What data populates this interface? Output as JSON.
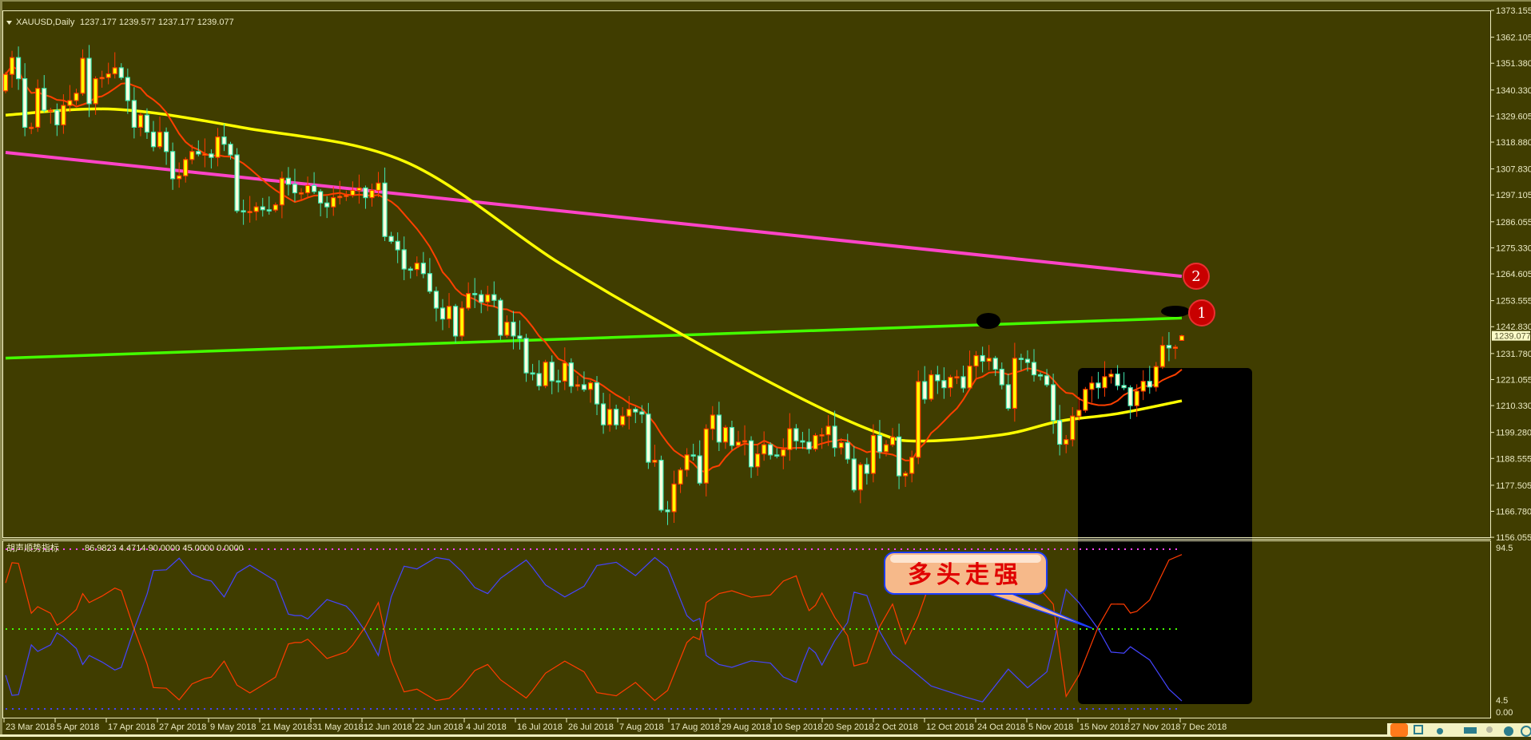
{
  "window": {
    "symbol_title": "XAUUSD,Daily",
    "ohlc": "1237.177 1239.577 1237.177 1239.077"
  },
  "colors": {
    "background": "#403d00",
    "frame": "#f0efc0",
    "bull_fill": "#ffff00",
    "bull_border": "#ff3c00",
    "bear_fill": "#fffee0",
    "bear_border": "#40e8b0",
    "ma_fast": "#ff4000",
    "ma_mid": "#ffff00",
    "ma_long": "#ff44c8",
    "trend_line": "#44ff00",
    "indicator_red": "#ff3c00",
    "indicator_blue": "#4444ff",
    "level_top": "#ff40ff",
    "level_mid": "#44ff00",
    "level_bottom": "#4444ff",
    "annotation_box": "#000000",
    "badge": "#c80000",
    "callout_fill": "#f6b98a",
    "callout_border": "#1a3cff"
  },
  "price_axis": {
    "ticks": [
      "1373.155",
      "1362.105",
      "1351.380",
      "1340.330",
      "1329.605",
      "1318.880",
      "1307.830",
      "1297.105",
      "1286.055",
      "1275.330",
      "1264.605",
      "1253.555",
      "1242.830",
      "1231.780",
      "1221.055",
      "1210.330",
      "1199.280",
      "1188.555",
      "1177.505",
      "1166.780",
      "1156.055"
    ],
    "current_price": "1239.077"
  },
  "time_axis": {
    "labels": [
      "23 Mar 2018",
      "5 Apr 2018",
      "17 Apr 2018",
      "27 Apr 2018",
      "9 May 2018",
      "21 May 2018",
      "31 May 2018",
      "12 Jun 2018",
      "22 Jun 2018",
      "4 Jul 2018",
      "16 Jul 2018",
      "26 Jul 2018",
      "7 Aug 2018",
      "17 Aug 2018",
      "29 Aug 2018",
      "10 Sep 2018",
      "20 Sep 2018",
      "2 Oct 2018",
      "12 Oct 2018",
      "24 Oct 2018",
      "5 Nov 2018",
      "15 Nov 2018",
      "27 Nov 2018",
      "7 Dec 2018"
    ]
  },
  "indicator": {
    "name": "胡声顺势指标",
    "values": "86.9823 4.4714 90.0000 45.0000 0.0000",
    "levels": [
      90,
      45,
      0
    ],
    "axis_top": "94.5",
    "axis_bottom": "0.00",
    "axis_bottom_overlap": "4.5"
  },
  "annotations": {
    "callout_text": "多头走强",
    "badge_1": "1",
    "badge_2": "2"
  },
  "chart_data": {
    "type": "candlestick",
    "title": "XAUUSD,Daily",
    "ylim": [
      1156.055,
      1373.155
    ],
    "grid": false,
    "close": [
      1346.8,
      1353.7,
      1345,
      1325,
      1325,
      1341,
      1332,
      1332,
      1326,
      1334,
      1336,
      1339,
      1353.4,
      1334.7,
      1345,
      1345.5,
      1347,
      1349.5,
      1345.5,
      1336,
      1325,
      1330,
      1323,
      1317,
      1323,
      1315,
      1303.8,
      1305,
      1311.7,
      1315,
      1314,
      1314,
      1312.6,
      1321,
      1318,
      1313.6,
      1290.6,
      1290.3,
      1290.3,
      1292.2,
      1291,
      1290.9,
      1293,
      1304,
      1301.5,
      1298,
      1298,
      1301,
      1298.5,
      1293.8,
      1292.2,
      1296,
      1296.5,
      1297,
      1299,
      1300,
      1296,
      1299,
      1302,
      1280,
      1278,
      1274.5,
      1266.6,
      1266.4,
      1269,
      1264.7,
      1257.4,
      1250.5,
      1246,
      1251.2,
      1239,
      1250.5,
      1256.5,
      1256,
      1253,
      1256,
      1253.7,
      1239.3,
      1244.7,
      1239,
      1238,
      1223.8,
      1223.5,
      1218.5,
      1228.2,
      1220.5,
      1220.4,
      1227.9,
      1218.3,
      1218.9,
      1217,
      1219.7,
      1211,
      1202.4,
      1208.8,
      1202.4,
      1206,
      1208.8,
      1207.7,
      1206.8,
      1187,
      1187.8,
      1167.3,
      1166.6,
      1178,
      1183.8,
      1190,
      1189.6,
      1178.4,
      1200.7,
      1206.4,
      1195.3,
      1201.3,
      1193.9,
      1195.3,
      1195.8,
      1185.1,
      1190.4,
      1194.2,
      1190,
      1189.6,
      1192.2,
      1200.8,
      1195.8,
      1195.3,
      1192.4,
      1198,
      1198.3,
      1201.8,
      1193,
      1195,
      1188.3,
      1175.6,
      1186,
      1182.4,
      1198,
      1191.3,
      1194.2,
      1197.4,
      1181.4,
      1182.4,
      1189,
      1220.2,
      1213,
      1223,
      1220.6,
      1217.7,
      1222,
      1222.2,
      1217.6,
      1226.6,
      1230.9,
      1228.6,
      1229.8,
      1225.3,
      1218.9,
      1209.2,
      1229.8,
      1229.4,
      1228.1,
      1223,
      1222.6,
      1218.9,
      1204.2,
      1194.4,
      1196.3,
      1206,
      1208.4,
      1217,
      1219.6,
      1217.7,
      1222.2,
      1223.3,
      1218.6,
      1217.7,
      1210.3,
      1216.3,
      1220.3,
      1218,
      1226.4,
      1235.1,
      1234.1,
      1234.4,
      1239.077
    ],
    "last_bar": {
      "open": 1237.177,
      "high": 1239.577,
      "low": 1237.177,
      "close": 1239.077
    },
    "ma_mid_points": [
      [
        0,
        1330
      ],
      [
        17,
        1332.4
      ],
      [
        37,
        1324.8
      ],
      [
        62,
        1311
      ],
      [
        86,
        1269.3
      ],
      [
        105,
        1240
      ],
      [
        124,
        1213
      ],
      [
        136,
        1198.8
      ],
      [
        142,
        1195.7
      ],
      [
        155,
        1198.3
      ],
      [
        164,
        1203.9
      ],
      [
        173,
        1207
      ],
      [
        183,
        1212.3
      ]
    ],
    "ma_long_points": [
      [
        0,
        1314.6
      ],
      [
        183,
        1263.6
      ]
    ],
    "trend_line_points": [
      [
        0,
        1229.9
      ],
      [
        183,
        1246.4
      ]
    ],
    "indicator_red": [
      [
        0,
        71
      ],
      [
        1,
        82.4
      ],
      [
        2,
        82
      ],
      [
        4,
        53.9
      ],
      [
        5,
        57.6
      ],
      [
        7,
        53.9
      ],
      [
        8,
        47.1
      ],
      [
        9,
        49.4
      ],
      [
        11,
        56
      ],
      [
        12,
        65
      ],
      [
        13,
        59.9
      ],
      [
        15,
        63.6
      ],
      [
        17,
        68.1
      ],
      [
        18,
        66.6
      ],
      [
        20,
        44.9
      ],
      [
        22,
        25.4
      ],
      [
        23,
        12
      ],
      [
        25,
        11.6
      ],
      [
        27,
        5.1
      ],
      [
        29,
        14.1
      ],
      [
        31,
        17.1
      ],
      [
        32,
        17.9
      ],
      [
        34,
        26.9
      ],
      [
        36,
        13.4
      ],
      [
        38,
        9
      ],
      [
        40,
        13.4
      ],
      [
        42,
        17.9
      ],
      [
        44,
        36.6
      ],
      [
        45,
        37.4
      ],
      [
        46,
        37.4
      ],
      [
        47,
        39.3
      ],
      [
        50,
        28.4
      ],
      [
        53,
        32.1
      ],
      [
        54,
        36
      ],
      [
        56,
        46.4
      ],
      [
        58,
        59.9
      ],
      [
        60,
        26.9
      ],
      [
        62,
        9.6
      ],
      [
        64,
        11.1
      ],
      [
        67,
        4.7
      ],
      [
        69,
        5.9
      ],
      [
        71,
        12.6
      ],
      [
        73,
        21.6
      ],
      [
        75,
        25
      ],
      [
        77,
        16.4
      ],
      [
        81,
        6.1
      ],
      [
        82,
        10.4
      ],
      [
        84,
        20.1
      ],
      [
        87,
        26.9
      ],
      [
        90,
        20.9
      ],
      [
        92,
        9.2
      ],
      [
        95,
        7.4
      ],
      [
        98,
        14.9
      ],
      [
        101,
        4.7
      ],
      [
        103,
        10.4
      ],
      [
        106,
        37.4
      ],
      [
        107,
        40.7
      ],
      [
        108,
        39
      ],
      [
        109,
        59.9
      ],
      [
        111,
        65
      ],
      [
        113,
        66.6
      ],
      [
        116,
        62.9
      ],
      [
        119,
        64.2
      ],
      [
        121,
        72
      ],
      [
        123,
        75
      ],
      [
        124,
        64.4
      ],
      [
        125,
        55.4
      ],
      [
        126,
        58.4
      ],
      [
        127,
        65.3
      ],
      [
        129,
        51.6
      ],
      [
        131,
        41.3
      ],
      [
        132,
        24.2
      ],
      [
        134,
        26.1
      ],
      [
        136,
        46.4
      ],
      [
        138,
        59.1
      ],
      [
        140,
        36.6
      ],
      [
        142,
        52.4
      ],
      [
        144,
        73
      ],
      [
        149,
        86
      ],
      [
        156,
        88
      ],
      [
        163,
        59
      ],
      [
        165,
        7
      ],
      [
        167,
        19
      ],
      [
        170,
        46.4
      ],
      [
        172,
        59.1
      ],
      [
        174,
        59
      ],
      [
        175,
        54
      ],
      [
        176,
        55
      ],
      [
        178,
        61.4
      ],
      [
        181,
        83.9
      ],
      [
        183,
        86.98
      ]
    ],
    "indicator_blue": [
      [
        0,
        19
      ],
      [
        1,
        7.6
      ],
      [
        2,
        8
      ],
      [
        4,
        36.1
      ],
      [
        5,
        32.4
      ],
      [
        7,
        36.1
      ],
      [
        8,
        42.9
      ],
      [
        9,
        40.6
      ],
      [
        11,
        34
      ],
      [
        12,
        25
      ],
      [
        13,
        30.1
      ],
      [
        15,
        26.4
      ],
      [
        17,
        21.9
      ],
      [
        18,
        23.4
      ],
      [
        20,
        45.1
      ],
      [
        22,
        64.6
      ],
      [
        23,
        78
      ],
      [
        25,
        78.4
      ],
      [
        27,
        84.9
      ],
      [
        29,
        75.9
      ],
      [
        31,
        72.9
      ],
      [
        32,
        72.1
      ],
      [
        34,
        63.1
      ],
      [
        36,
        76.6
      ],
      [
        38,
        81
      ],
      [
        40,
        76.6
      ],
      [
        42,
        72.1
      ],
      [
        44,
        53.4
      ],
      [
        45,
        52.6
      ],
      [
        46,
        52.6
      ],
      [
        47,
        50.7
      ],
      [
        50,
        61.6
      ],
      [
        53,
        57.9
      ],
      [
        54,
        54
      ],
      [
        56,
        43.6
      ],
      [
        58,
        30.1
      ],
      [
        60,
        63.1
      ],
      [
        62,
        80.4
      ],
      [
        64,
        78.9
      ],
      [
        67,
        85.3
      ],
      [
        69,
        84.1
      ],
      [
        71,
        77.4
      ],
      [
        73,
        68.4
      ],
      [
        75,
        65
      ],
      [
        77,
        73.6
      ],
      [
        81,
        83.9
      ],
      [
        82,
        79.6
      ],
      [
        84,
        69.9
      ],
      [
        87,
        63.1
      ],
      [
        90,
        69.1
      ],
      [
        92,
        80.8
      ],
      [
        95,
        82.6
      ],
      [
        98,
        75.1
      ],
      [
        101,
        85.3
      ],
      [
        103,
        79.6
      ],
      [
        106,
        52.6
      ],
      [
        107,
        49.3
      ],
      [
        108,
        51
      ],
      [
        109,
        30.1
      ],
      [
        111,
        25
      ],
      [
        113,
        23.4
      ],
      [
        116,
        27.1
      ],
      [
        119,
        25.8
      ],
      [
        121,
        18
      ],
      [
        123,
        15
      ],
      [
        124,
        25.6
      ],
      [
        125,
        34.6
      ],
      [
        126,
        31.6
      ],
      [
        127,
        24.7
      ],
      [
        129,
        38.4
      ],
      [
        131,
        48.7
      ],
      [
        132,
        65.8
      ],
      [
        134,
        63.9
      ],
      [
        136,
        43.6
      ],
      [
        138,
        30.9
      ],
      [
        140,
        25
      ],
      [
        144,
        12.9
      ],
      [
        149,
        7
      ],
      [
        152,
        3.9
      ],
      [
        156,
        22.4
      ],
      [
        159,
        11.9
      ],
      [
        162,
        20.9
      ],
      [
        165,
        67.4
      ],
      [
        167,
        59.9
      ],
      [
        170,
        45
      ],
      [
        172,
        32
      ],
      [
        174,
        31.4
      ],
      [
        175,
        35
      ],
      [
        178,
        27.6
      ],
      [
        181,
        11.1
      ],
      [
        183,
        4.47
      ]
    ]
  }
}
